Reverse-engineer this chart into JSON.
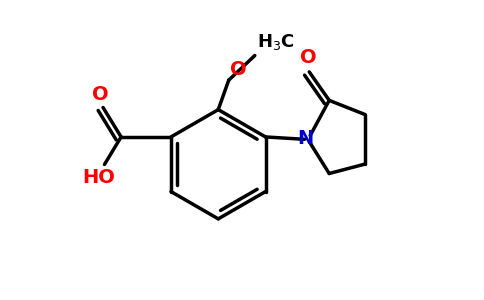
{
  "background_color": "#ffffff",
  "line_color": "#000000",
  "red_color": "#ff0000",
  "blue_color": "#0000cc",
  "line_width": 2.5,
  "figsize": [
    4.84,
    3.0
  ],
  "dpi": 100,
  "xlim": [
    0,
    10
  ],
  "ylim": [
    0,
    6.2
  ]
}
